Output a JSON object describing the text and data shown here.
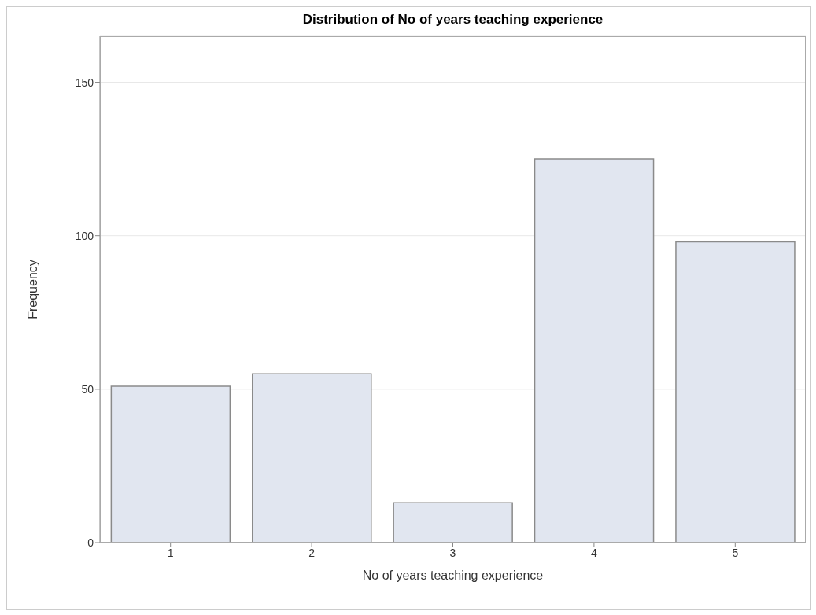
{
  "chart_data": {
    "type": "bar",
    "title": "Distribution of No of years teaching experience",
    "xlabel": "No of years teaching experience",
    "ylabel": "Frequency",
    "categories": [
      "1",
      "2",
      "3",
      "4",
      "5"
    ],
    "values": [
      51,
      55,
      13,
      125,
      98
    ],
    "color": "#e1e6f0",
    "ylim": [
      0,
      165
    ],
    "yticks": [
      0,
      50,
      100,
      150
    ],
    "grid": "y"
  }
}
